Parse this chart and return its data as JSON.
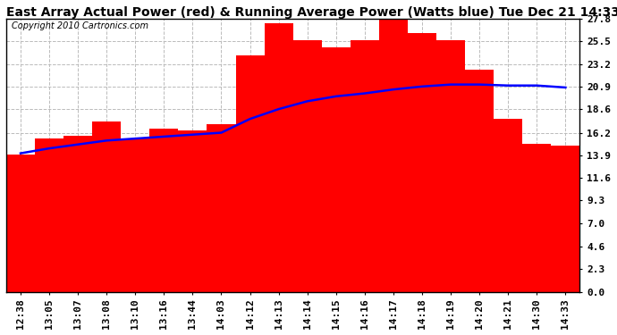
{
  "title": "East Array Actual Power (red) & Running Average Power (Watts blue) Tue Dec 21 14:33",
  "copyright": "Copyright 2010 Cartronics.com",
  "x_labels": [
    "12:38",
    "13:05",
    "13:07",
    "13:08",
    "13:10",
    "13:16",
    "13:44",
    "14:03",
    "14:12",
    "14:13",
    "14:14",
    "14:15",
    "14:16",
    "14:17",
    "14:18",
    "14:19",
    "14:20",
    "14:21",
    "14:30",
    "14:33"
  ],
  "bar_values": [
    14.0,
    15.6,
    15.9,
    17.3,
    15.6,
    16.6,
    16.4,
    17.1,
    24.1,
    27.3,
    25.6,
    24.9,
    25.6,
    27.9,
    26.3,
    25.6,
    22.6,
    17.6,
    15.1,
    14.9
  ],
  "avg_values": [
    14.1,
    14.6,
    15.0,
    15.4,
    15.6,
    15.8,
    16.0,
    16.2,
    17.6,
    18.6,
    19.4,
    19.9,
    20.2,
    20.6,
    20.9,
    21.1,
    21.1,
    21.0,
    21.0,
    20.8
  ],
  "ylim": [
    0.0,
    27.8
  ],
  "yticks": [
    0.0,
    2.3,
    4.6,
    7.0,
    9.3,
    11.6,
    13.9,
    16.2,
    18.6,
    20.9,
    23.2,
    25.5,
    27.8
  ],
  "bar_color": "#FF0000",
  "line_color": "#0000FF",
  "background_color": "#FFFFFF",
  "plot_bg_color": "#FFFFFF",
  "grid_color": "#BBBBBB",
  "title_fontsize": 10,
  "copyright_fontsize": 7,
  "tick_fontsize": 8,
  "figsize": [
    6.9,
    3.75
  ],
  "dpi": 100
}
